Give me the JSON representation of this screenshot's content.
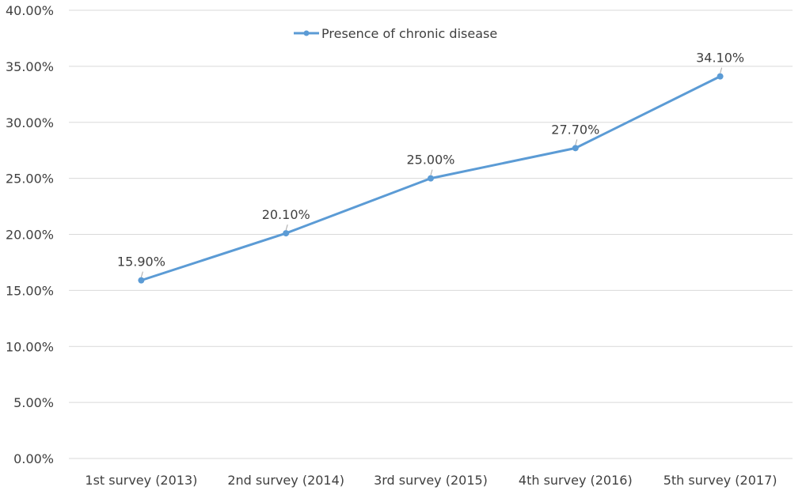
{
  "colors": {
    "series": "#5b9bd5",
    "grid": "#d9d9d9",
    "text": "#404040"
  },
  "chart_data": {
    "type": "line",
    "title": "",
    "xlabel": "",
    "ylabel": "",
    "categories": [
      "1st survey (2013)",
      "2nd survey (2014)",
      "3rd survey (2015)",
      "4th survey (2016)",
      "5th survey (2017)"
    ],
    "series": [
      {
        "name": "Presence of chronic disease",
        "values": [
          15.9,
          20.1,
          25.0,
          27.7,
          34.1
        ],
        "data_labels": [
          "15.90%",
          "20.10%",
          "25.00%",
          "27.70%",
          "34.10%"
        ]
      }
    ],
    "ylim": [
      0,
      40
    ],
    "yticks": [
      0,
      5,
      10,
      15,
      20,
      25,
      30,
      35,
      40
    ],
    "ytick_labels": [
      "0.00%",
      "5.00%",
      "10.00%",
      "15.00%",
      "20.00%",
      "25.00%",
      "30.00%",
      "35.00%",
      "40.00%"
    ],
    "grid": true,
    "legend_position": "top"
  }
}
